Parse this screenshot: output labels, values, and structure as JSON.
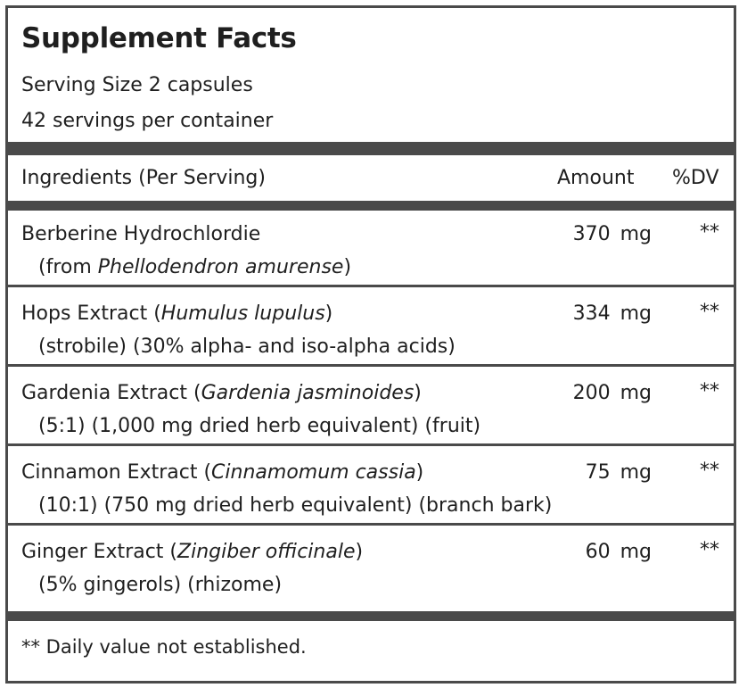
{
  "title": "Supplement Facts",
  "serving_size": "Serving Size 2 capsules",
  "servings_per_container": "42 servings per container",
  "header": {
    "ingredients": "Ingredients (Per Serving)",
    "amount": "Amount",
    "dv": "%DV"
  },
  "ingredients": [
    {
      "name": "Berberine  Hydrochlordie",
      "detail_prefix": "(from ",
      "detail_latin": "Phellodendron amurense",
      "detail_suffix": ")",
      "name_latin": "",
      "name_suffix": "",
      "amount": "370 mg",
      "dv": "**"
    },
    {
      "name": "Hops  Extract  (",
      "name_latin": "Humulus  lupulus",
      "name_suffix": ")",
      "detail_prefix": "(strobile) (30% alpha- and iso-alpha acids)",
      "detail_latin": "",
      "detail_suffix": "",
      "amount": "334 mg",
      "dv": "**"
    },
    {
      "name": "Gardenia Extract (",
      "name_latin": "Gardenia jasminoides",
      "name_suffix": ")",
      "detail_prefix": "(5:1) (1,000 mg dried herb equivalent) (fruit)",
      "detail_latin": "",
      "detail_suffix": "",
      "amount": "200 mg",
      "dv": "**"
    },
    {
      "name": "Cinnamon Extract (",
      "name_latin": "Cinnamomum cassia",
      "name_suffix": ")",
      "detail_prefix": "(10:1) (750 mg dried herb equivalent) (branch bark)",
      "detail_latin": "",
      "detail_suffix": "",
      "amount": "75 mg",
      "dv": "**"
    },
    {
      "name": "Ginger  Extract  (",
      "name_latin": "Zingiber  officinale",
      "name_suffix": ")",
      "detail_prefix": "(5% gingerols) (rhizome)",
      "detail_latin": "",
      "detail_suffix": "",
      "amount": "60 mg",
      "dv": "**"
    }
  ],
  "footnote": "** Daily value not established."
}
